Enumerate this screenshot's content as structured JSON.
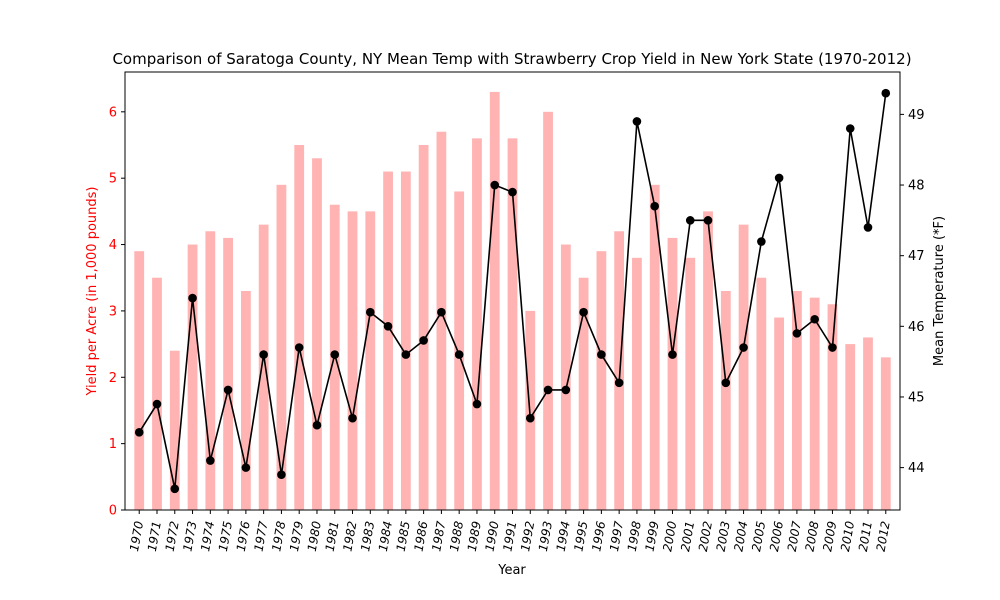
{
  "chart_data": {
    "type": "bar+line",
    "title": "Comparison of Saratoga County, NY Mean Temp with Strawberry Crop Yield in New York State (1970-2012)",
    "xlabel": "Year",
    "ylabel_left": "Yield per Acre (in 1,000 pounds)",
    "ylabel_right": "Mean Temperature (*F)",
    "categories": [
      "1970",
      "1971",
      "1972",
      "1973",
      "1974",
      "1975",
      "1976",
      "1977",
      "1978",
      "1979",
      "1980",
      "1981",
      "1982",
      "1983",
      "1984",
      "1985",
      "1986",
      "1987",
      "1988",
      "1989",
      "1990",
      "1991",
      "1992",
      "1993",
      "1994",
      "1995",
      "1996",
      "1997",
      "1998",
      "1999",
      "2000",
      "2001",
      "2002",
      "2003",
      "2004",
      "2005",
      "2006",
      "2007",
      "2008",
      "2009",
      "2010",
      "2011",
      "2012"
    ],
    "yield": [
      3.9,
      3.5,
      2.4,
      4.0,
      4.2,
      4.1,
      3.3,
      4.3,
      4.9,
      5.5,
      5.3,
      4.6,
      4.5,
      4.5,
      5.1,
      5.1,
      5.5,
      5.7,
      4.8,
      5.6,
      6.3,
      5.6,
      3.0,
      6.0,
      4.0,
      3.5,
      3.9,
      4.2,
      3.8,
      4.9,
      4.1,
      3.8,
      4.5,
      3.3,
      4.3,
      3.5,
      2.9,
      3.3,
      3.2,
      3.1,
      2.5,
      2.6,
      2.3
    ],
    "temperature": [
      44.5,
      44.9,
      43.7,
      46.4,
      44.1,
      45.1,
      44.0,
      45.6,
      43.9,
      45.7,
      44.6,
      45.6,
      44.7,
      46.2,
      46.0,
      45.6,
      45.8,
      46.2,
      45.6,
      44.9,
      48.0,
      47.9,
      44.7,
      45.1,
      45.1,
      46.2,
      45.6,
      45.2,
      48.9,
      47.7,
      45.6,
      47.5,
      47.5,
      45.2,
      45.7,
      47.2,
      48.1,
      45.9,
      46.1,
      45.7,
      48.8,
      47.4,
      49.3
    ],
    "ylim_left": [
      0,
      6.6
    ],
    "yticks_left": [
      "0",
      "1",
      "2",
      "3",
      "4",
      "5",
      "6"
    ],
    "ylim_right": [
      43.4,
      49.6
    ],
    "yticks_right": [
      "44",
      "45",
      "46",
      "47",
      "48",
      "49"
    ],
    "colors": {
      "bars": "#ffb3b3",
      "line": "#000000",
      "left_axis": "#ff0000"
    },
    "grid": false,
    "legend": "none"
  }
}
